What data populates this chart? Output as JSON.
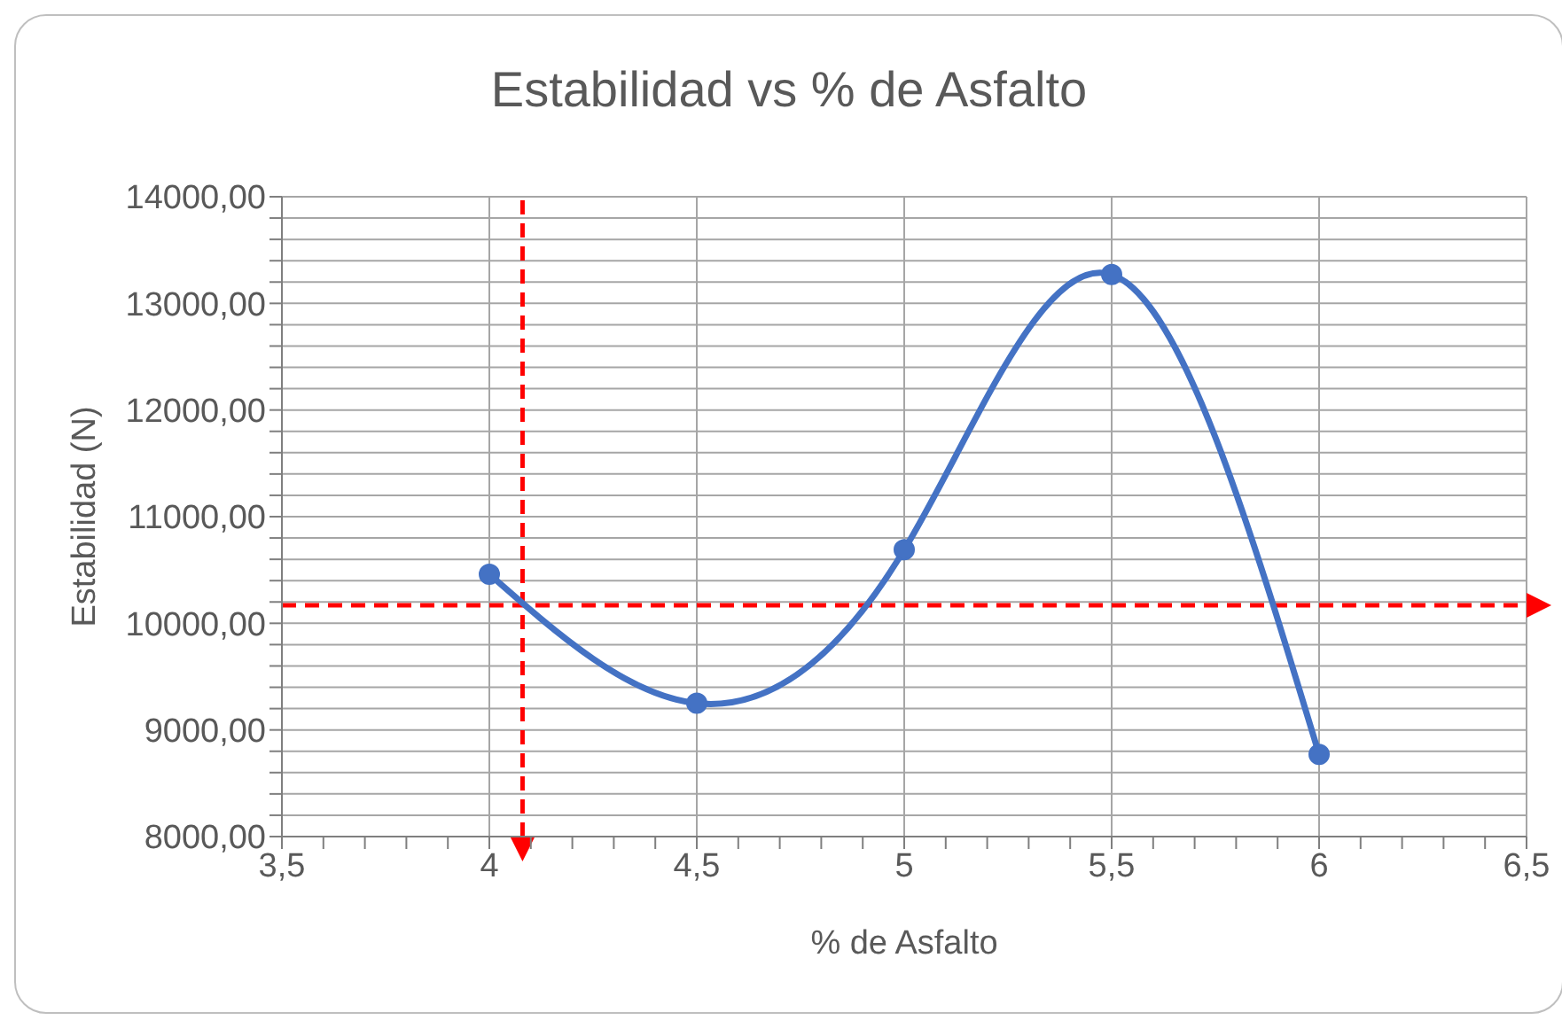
{
  "chart_data": {
    "type": "line",
    "title": "Estabilidad vs % de Asfalto",
    "xlabel": "% de Asfalto",
    "ylabel": "Estabilidad (N)",
    "x": [
      4,
      4.5,
      5,
      5.5,
      6
    ],
    "series": [
      {
        "color": "#4472c4",
        "values": [
          10460,
          9250,
          10690,
          13270,
          8770
        ]
      }
    ],
    "xlim": [
      3.5,
      6.5
    ],
    "xticks": [
      {
        "value": 3.5,
        "label": "3,5"
      },
      {
        "value": 3.6,
        "label": null
      },
      {
        "value": 3.7,
        "label": null
      },
      {
        "value": 3.8,
        "label": null
      },
      {
        "value": 3.9,
        "label": null
      },
      4,
      {
        "value": 4.1,
        "label": null
      },
      {
        "value": 4.2,
        "label": null
      },
      {
        "value": 4.3,
        "label": null
      },
      {
        "value": 4.4,
        "label": null
      },
      {
        "value": 4.5,
        "label": "4,5"
      },
      {
        "value": 4.6,
        "label": null
      },
      {
        "value": 4.7,
        "label": null
      },
      {
        "value": 4.8,
        "label": null
      },
      {
        "value": 4.9,
        "label": null
      },
      5,
      {
        "value": 5.1,
        "label": null
      },
      {
        "value": 5.2,
        "label": null
      },
      {
        "value": 5.3,
        "label": null
      },
      {
        "value": 5.4,
        "label": null
      },
      {
        "value": 5.5,
        "label": "5,5"
      },
      {
        "value": 5.6,
        "label": null
      },
      {
        "value": 5.7,
        "label": null
      },
      {
        "value": 5.8,
        "label": null
      },
      {
        "value": 5.9,
        "label": null
      },
      6,
      {
        "value": 6.1,
        "label": null
      },
      {
        "value": 6.2,
        "label": null
      },
      {
        "value": 6.3,
        "label": null
      },
      {
        "value": 6.4,
        "label": null
      },
      {
        "value": 6.5,
        "label": "6,5"
      }
    ],
    "ylim": [
      8000,
      14000
    ],
    "yticks": [
      {
        "value": 8000,
        "label": "8000,00"
      },
      {
        "value": 8200,
        "label": null
      },
      {
        "value": 8400,
        "label": null
      },
      {
        "value": 8600,
        "label": null
      },
      {
        "value": 8800,
        "label": null
      },
      {
        "value": 9000,
        "label": "9000,00"
      },
      {
        "value": 9200,
        "label": null
      },
      {
        "value": 9400,
        "label": null
      },
      {
        "value": 9600,
        "label": null
      },
      {
        "value": 9800,
        "label": null
      },
      {
        "value": 10000,
        "label": "10000,00"
      },
      {
        "value": 10200,
        "label": null
      },
      {
        "value": 10400,
        "label": null
      },
      {
        "value": 10600,
        "label": null
      },
      {
        "value": 10800,
        "label": null
      },
      {
        "value": 11000,
        "label": "11000,00"
      },
      {
        "value": 11200,
        "label": null
      },
      {
        "value": 11400,
        "label": null
      },
      {
        "value": 11600,
        "label": null
      },
      {
        "value": 11800,
        "label": null
      },
      {
        "value": 12000,
        "label": "12000,00"
      },
      {
        "value": 12200,
        "label": null
      },
      {
        "value": 12400,
        "label": null
      },
      {
        "value": 12600,
        "label": null
      },
      {
        "value": 12800,
        "label": null
      },
      {
        "value": 13000,
        "label": "13000,00"
      },
      {
        "value": 13200,
        "label": null
      },
      {
        "value": 13400,
        "label": null
      },
      {
        "value": 13600,
        "label": null
      },
      {
        "value": 13800,
        "label": null
      },
      {
        "value": 14000,
        "label": "14000,00"
      }
    ],
    "grid": true,
    "marker": "circle",
    "line_style": "solid",
    "ref_lines": [
      {
        "axis": "x",
        "value": 4.08,
        "color": "#ff0000",
        "line_style": "dashed"
      },
      {
        "axis": "y",
        "value": 10170,
        "color": "#ff0000",
        "line_style": "dashed"
      }
    ]
  }
}
